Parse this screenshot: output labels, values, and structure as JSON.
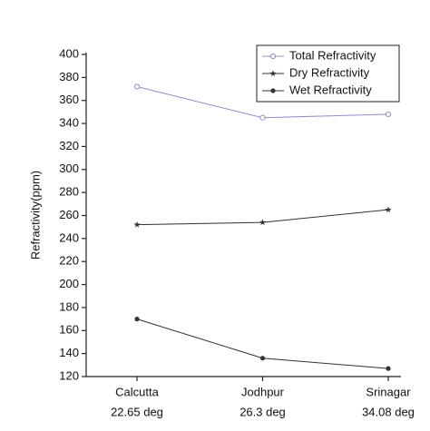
{
  "chart_data": {
    "type": "line",
    "y_label": "Refractivity(ppm)",
    "categories": [
      "Calcutta",
      "Jodhpur",
      "Srinagar"
    ],
    "category_sublabels": [
      "22.65 deg",
      "26.3 deg",
      "34.08 deg"
    ],
    "series": [
      {
        "name": "Total Refractivity",
        "color": "#8a90c8",
        "marker": "open-circle",
        "values": [
          372,
          345,
          348
        ]
      },
      {
        "name": "Dry Refractivity",
        "color": "#333333",
        "marker": "star",
        "values": [
          252,
          254,
          265
        ]
      },
      {
        "name": "Wet Refractivity",
        "color": "#333333",
        "marker": "filled-circle",
        "values": [
          170,
          136,
          127
        ]
      }
    ],
    "ylim": [
      120,
      400
    ],
    "yticks": [
      120,
      140,
      160,
      180,
      200,
      220,
      240,
      260,
      280,
      300,
      320,
      340,
      360,
      380,
      400
    ],
    "legend": "top-right"
  }
}
